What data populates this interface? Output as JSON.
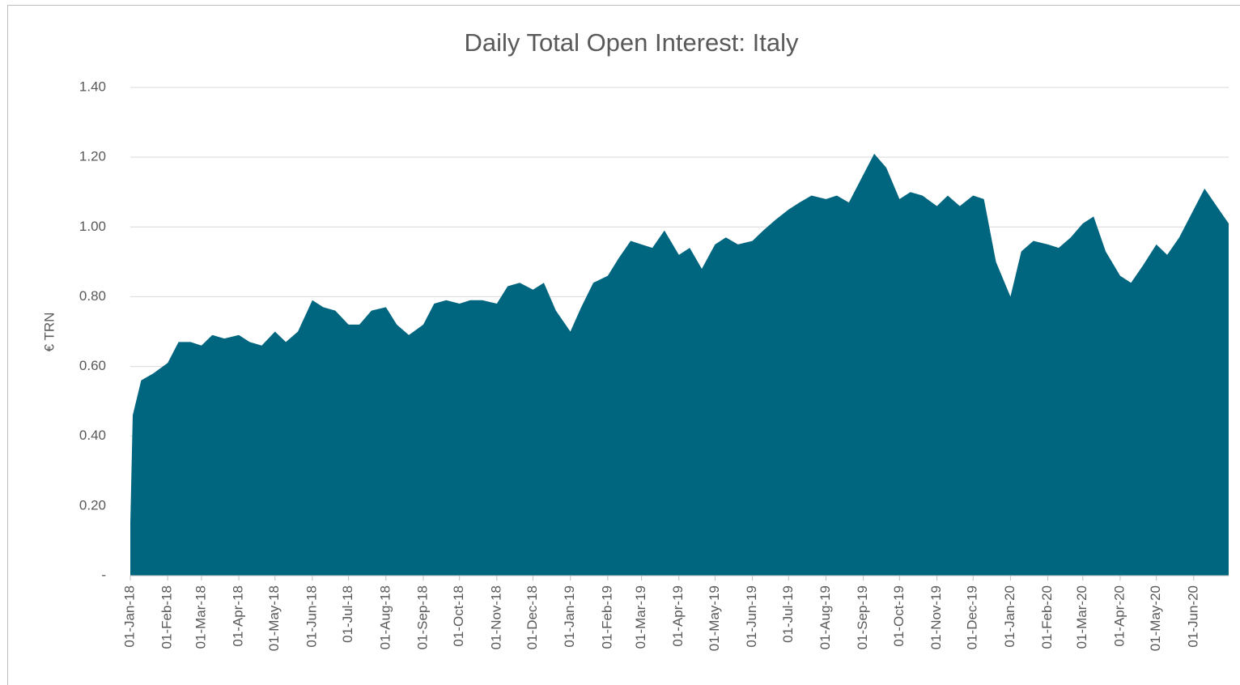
{
  "chart_data": {
    "type": "area",
    "title": "Daily Total Open Interest: Italy",
    "y_label": "€ TRN",
    "color": "#00657f",
    "grid": true,
    "x": [
      "2018-01-01",
      "2018-01-03",
      "2018-01-10",
      "2018-01-20",
      "2018-02-01",
      "2018-02-10",
      "2018-02-20",
      "2018-03-01",
      "2018-03-10",
      "2018-03-20",
      "2018-04-01",
      "2018-04-10",
      "2018-04-20",
      "2018-05-01",
      "2018-05-10",
      "2018-05-20",
      "2018-06-01",
      "2018-06-10",
      "2018-06-20",
      "2018-07-01",
      "2018-07-10",
      "2018-07-20",
      "2018-08-01",
      "2018-08-10",
      "2018-08-20",
      "2018-09-01",
      "2018-09-10",
      "2018-09-20",
      "2018-10-01",
      "2018-10-10",
      "2018-10-20",
      "2018-11-01",
      "2018-11-10",
      "2018-11-20",
      "2018-12-01",
      "2018-12-10",
      "2018-12-20",
      "2019-01-01",
      "2019-01-10",
      "2019-01-20",
      "2019-02-01",
      "2019-02-10",
      "2019-02-20",
      "2019-03-01",
      "2019-03-10",
      "2019-03-20",
      "2019-04-01",
      "2019-04-10",
      "2019-04-20",
      "2019-05-01",
      "2019-05-10",
      "2019-05-20",
      "2019-06-01",
      "2019-06-10",
      "2019-06-20",
      "2019-07-01",
      "2019-07-10",
      "2019-07-20",
      "2019-08-01",
      "2019-08-10",
      "2019-08-20",
      "2019-09-01",
      "2019-09-10",
      "2019-09-20",
      "2019-10-01",
      "2019-10-10",
      "2019-10-20",
      "2019-11-01",
      "2019-11-10",
      "2019-11-20",
      "2019-12-01",
      "2019-12-10",
      "2019-12-20",
      "2020-01-01",
      "2020-01-10",
      "2020-01-20",
      "2020-02-01",
      "2020-02-10",
      "2020-02-20",
      "2020-03-01",
      "2020-03-10",
      "2020-03-20",
      "2020-04-01",
      "2020-04-10",
      "2020-04-20",
      "2020-05-01",
      "2020-05-10",
      "2020-05-20",
      "2020-06-01",
      "2020-06-10",
      "2020-06-20",
      "2020-06-30"
    ],
    "values": [
      0.15,
      0.46,
      0.56,
      0.58,
      0.61,
      0.67,
      0.67,
      0.66,
      0.69,
      0.68,
      0.69,
      0.67,
      0.66,
      0.7,
      0.67,
      0.7,
      0.79,
      0.77,
      0.76,
      0.72,
      0.72,
      0.76,
      0.77,
      0.72,
      0.69,
      0.72,
      0.78,
      0.79,
      0.78,
      0.79,
      0.79,
      0.78,
      0.83,
      0.84,
      0.82,
      0.84,
      0.76,
      0.7,
      0.77,
      0.84,
      0.86,
      0.91,
      0.96,
      0.95,
      0.94,
      0.99,
      0.92,
      0.94,
      0.88,
      0.95,
      0.97,
      0.95,
      0.96,
      0.99,
      1.02,
      1.05,
      1.07,
      1.09,
      1.08,
      1.09,
      1.07,
      1.15,
      1.21,
      1.17,
      1.08,
      1.1,
      1.09,
      1.06,
      1.09,
      1.06,
      1.09,
      1.08,
      0.9,
      0.8,
      0.93,
      0.96,
      0.95,
      0.94,
      0.97,
      1.01,
      1.03,
      0.93,
      0.86,
      0.84,
      0.89,
      0.95,
      0.92,
      0.97,
      1.05,
      1.11,
      1.06,
      1.01
    ],
    "xlim": [
      "2018-01-01",
      "2020-06-30"
    ],
    "xticks": [
      {
        "value": "2018-01-01",
        "label": "01-Jan-18"
      },
      {
        "value": "2018-02-01",
        "label": "01-Feb-18"
      },
      {
        "value": "2018-03-01",
        "label": "01-Mar-18"
      },
      {
        "value": "2018-04-01",
        "label": "01-Apr-18"
      },
      {
        "value": "2018-05-01",
        "label": "01-May-18"
      },
      {
        "value": "2018-06-01",
        "label": "01-Jun-18"
      },
      {
        "value": "2018-07-01",
        "label": "01-Jul-18"
      },
      {
        "value": "2018-08-01",
        "label": "01-Aug-18"
      },
      {
        "value": "2018-09-01",
        "label": "01-Sep-18"
      },
      {
        "value": "2018-10-01",
        "label": "01-Oct-18"
      },
      {
        "value": "2018-11-01",
        "label": "01-Nov-18"
      },
      {
        "value": "2018-12-01",
        "label": "01-Dec-18"
      },
      {
        "value": "2019-01-01",
        "label": "01-Jan-19"
      },
      {
        "value": "2019-02-01",
        "label": "01-Feb-19"
      },
      {
        "value": "2019-03-01",
        "label": "01-Mar-19"
      },
      {
        "value": "2019-04-01",
        "label": "01-Apr-19"
      },
      {
        "value": "2019-05-01",
        "label": "01-May-19"
      },
      {
        "value": "2019-06-01",
        "label": "01-Jun-19"
      },
      {
        "value": "2019-07-01",
        "label": "01-Jul-19"
      },
      {
        "value": "2019-08-01",
        "label": "01-Aug-19"
      },
      {
        "value": "2019-09-01",
        "label": "01-Sep-19"
      },
      {
        "value": "2019-10-01",
        "label": "01-Oct-19"
      },
      {
        "value": "2019-11-01",
        "label": "01-Nov-19"
      },
      {
        "value": "2019-12-01",
        "label": "01-Dec-19"
      },
      {
        "value": "2020-01-01",
        "label": "01-Jan-20"
      },
      {
        "value": "2020-02-01",
        "label": "01-Feb-20"
      },
      {
        "value": "2020-03-01",
        "label": "01-Mar-20"
      },
      {
        "value": "2020-04-01",
        "label": "01-Apr-20"
      },
      {
        "value": "2020-05-01",
        "label": "01-May-20"
      },
      {
        "value": "2020-06-01",
        "label": "01-Jun-20"
      }
    ],
    "ylim": [
      0,
      1.4
    ],
    "yticks": [
      {
        "value": 0,
        "label": "-"
      },
      {
        "value": 0.2,
        "label": "0.20"
      },
      {
        "value": 0.4,
        "label": "0.40"
      },
      {
        "value": 0.6,
        "label": "0.60"
      },
      {
        "value": 0.8,
        "label": "0.80"
      },
      {
        "value": 1.0,
        "label": "1.00"
      },
      {
        "value": 1.2,
        "label": "1.20"
      },
      {
        "value": 1.4,
        "label": "1.40"
      }
    ]
  }
}
